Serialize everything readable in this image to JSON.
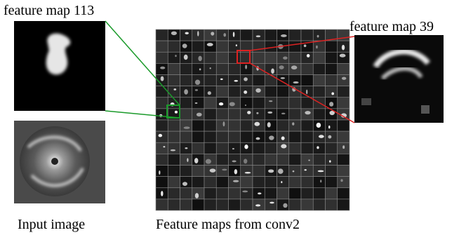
{
  "labels": {
    "feature_map_a": "feature map 113",
    "feature_map_b": "feature map 39",
    "input": "Input image",
    "grid": "Feature maps from conv2"
  }
}
